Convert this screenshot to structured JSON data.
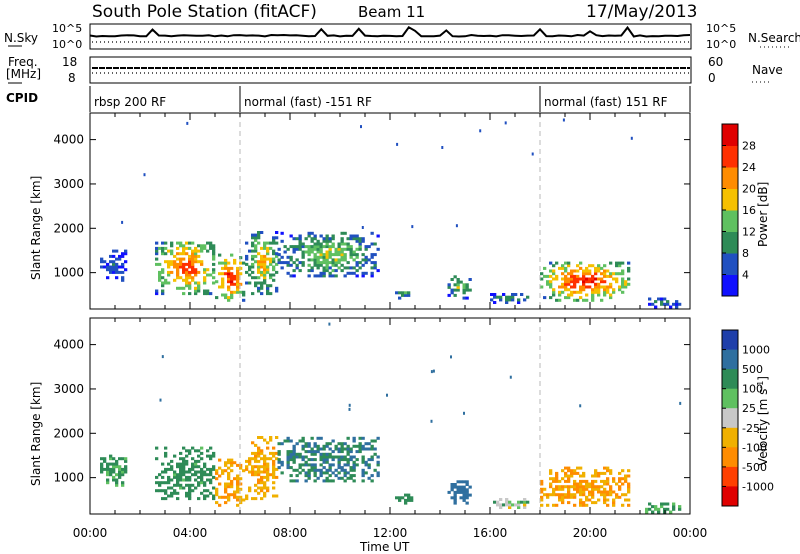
{
  "header": {
    "title": "South Pole Station (fitACF)",
    "beam": "Beam 11",
    "date": "17/May/2013"
  },
  "aux_panels": {
    "nsky_label": "N.Sky",
    "nsearch_label": "N.Search",
    "noise_ticks": [
      "10^5",
      "10^0"
    ],
    "freq_label_line1": "Freq.",
    "freq_label_line2": "[MHz]",
    "freq_ticks": [
      "18",
      "8"
    ],
    "nave_label": "Nave",
    "nave_ticks": [
      "60",
      "0"
    ],
    "cpid_label": "CPID"
  },
  "cpid_segments": [
    {
      "label": "rbsp 200 RF",
      "start_hour": 0
    },
    {
      "label": "normal (fast) -151 RF",
      "start_hour": 6
    },
    {
      "label": "normal (fast) 151 RF",
      "start_hour": 18
    }
  ],
  "colorbars": {
    "power": {
      "title": "Power [dB]",
      "ticks": [
        "4",
        "8",
        "12",
        "16",
        "20",
        "24",
        "28"
      ],
      "colors": [
        "#1010ff",
        "#2050c0",
        "#2e8b57",
        "#5fc060",
        "#f5c000",
        "#ff8c00",
        "#ff3000",
        "#e00000"
      ]
    },
    "velocity": {
      "title": "Velocity [m s",
      "title_exp": "-1",
      "title_end": "]",
      "ticks": [
        "1000",
        "500",
        "100",
        "25",
        "-25",
        "-100",
        "-500",
        "-1000"
      ],
      "colors": [
        "#1f3faa",
        "#2f6f9f",
        "#2e8b57",
        "#5fc060",
        "#c8c8c8",
        "#f0b000",
        "#ff8c00",
        "#ff4000",
        "#e00000"
      ]
    }
  },
  "chart_data": [
    {
      "type": "heatmap",
      "name": "power",
      "ylabel": "Slant Range [km]",
      "ylim": [
        180,
        4600
      ],
      "yticks": [
        1000,
        2000,
        3000,
        4000
      ],
      "xlim": [
        0,
        24
      ],
      "xticks_hours": [
        0,
        4,
        8,
        12,
        16,
        20,
        24
      ],
      "colorbar_range": [
        0,
        30
      ],
      "colorbar_unit": "dB",
      "regions": [
        {
          "t0": 0.4,
          "t1": 1.4,
          "r0": 800,
          "r1": 1500,
          "level": 6
        },
        {
          "t0": 2.6,
          "t1": 5.0,
          "r0": 500,
          "r1": 1700,
          "level": 24
        },
        {
          "t0": 5.0,
          "t1": 6.2,
          "r0": 350,
          "r1": 1400,
          "level": 26
        },
        {
          "t0": 6.2,
          "t1": 7.5,
          "r0": 500,
          "r1": 1900,
          "level": 18
        },
        {
          "t0": 7.5,
          "t1": 11.5,
          "r0": 900,
          "r1": 1900,
          "level": 14
        },
        {
          "t0": 12.2,
          "t1": 12.8,
          "r0": 400,
          "r1": 600,
          "level": 10
        },
        {
          "t0": 14.3,
          "t1": 15.2,
          "r0": 400,
          "r1": 900,
          "level": 14
        },
        {
          "t0": 16.0,
          "t1": 17.5,
          "r0": 300,
          "r1": 500,
          "level": 10
        },
        {
          "t0": 18.0,
          "t1": 21.5,
          "r0": 350,
          "r1": 1200,
          "level": 26
        },
        {
          "t0": 22.2,
          "t1": 23.6,
          "r0": 200,
          "r1": 400,
          "level": 8
        }
      ]
    },
    {
      "type": "heatmap",
      "name": "velocity",
      "ylabel": "Slant Range [km]",
      "xlabel": "Time UT",
      "ylim": [
        180,
        4600
      ],
      "yticks": [
        1000,
        2000,
        3000,
        4000
      ],
      "xlim": [
        0,
        24
      ],
      "xticks_hours": [
        0,
        4,
        8,
        12,
        16,
        20,
        24
      ],
      "xtick_labels": [
        "00:00",
        "04:00",
        "08:00",
        "12:00",
        "16:00",
        "20:00",
        "00:00"
      ],
      "colorbar_range": [
        -1000,
        1000
      ],
      "colorbar_unit": "m s-1",
      "regions": [
        {
          "t0": 0.4,
          "t1": 1.4,
          "r0": 800,
          "r1": 1500,
          "level": 100
        },
        {
          "t0": 2.6,
          "t1": 5.0,
          "r0": 500,
          "r1": 1700,
          "level": 150
        },
        {
          "t0": 5.0,
          "t1": 6.2,
          "r0": 350,
          "r1": 1400,
          "level": -300
        },
        {
          "t0": 6.2,
          "t1": 7.5,
          "r0": 500,
          "r1": 1900,
          "level": -250
        },
        {
          "t0": 7.5,
          "t1": 11.5,
          "r0": 900,
          "r1": 1900,
          "level": 300
        },
        {
          "t0": 12.2,
          "t1": 12.8,
          "r0": 400,
          "r1": 600,
          "level": 150
        },
        {
          "t0": 14.3,
          "t1": 15.2,
          "r0": 400,
          "r1": 900,
          "level": 400
        },
        {
          "t0": 16.0,
          "t1": 17.5,
          "r0": 300,
          "r1": 500,
          "level": 0
        },
        {
          "t0": 18.0,
          "t1": 21.5,
          "r0": 350,
          "r1": 1200,
          "level": -300
        },
        {
          "t0": 22.2,
          "t1": 23.6,
          "r0": 200,
          "r1": 400,
          "level": 100
        }
      ]
    }
  ]
}
